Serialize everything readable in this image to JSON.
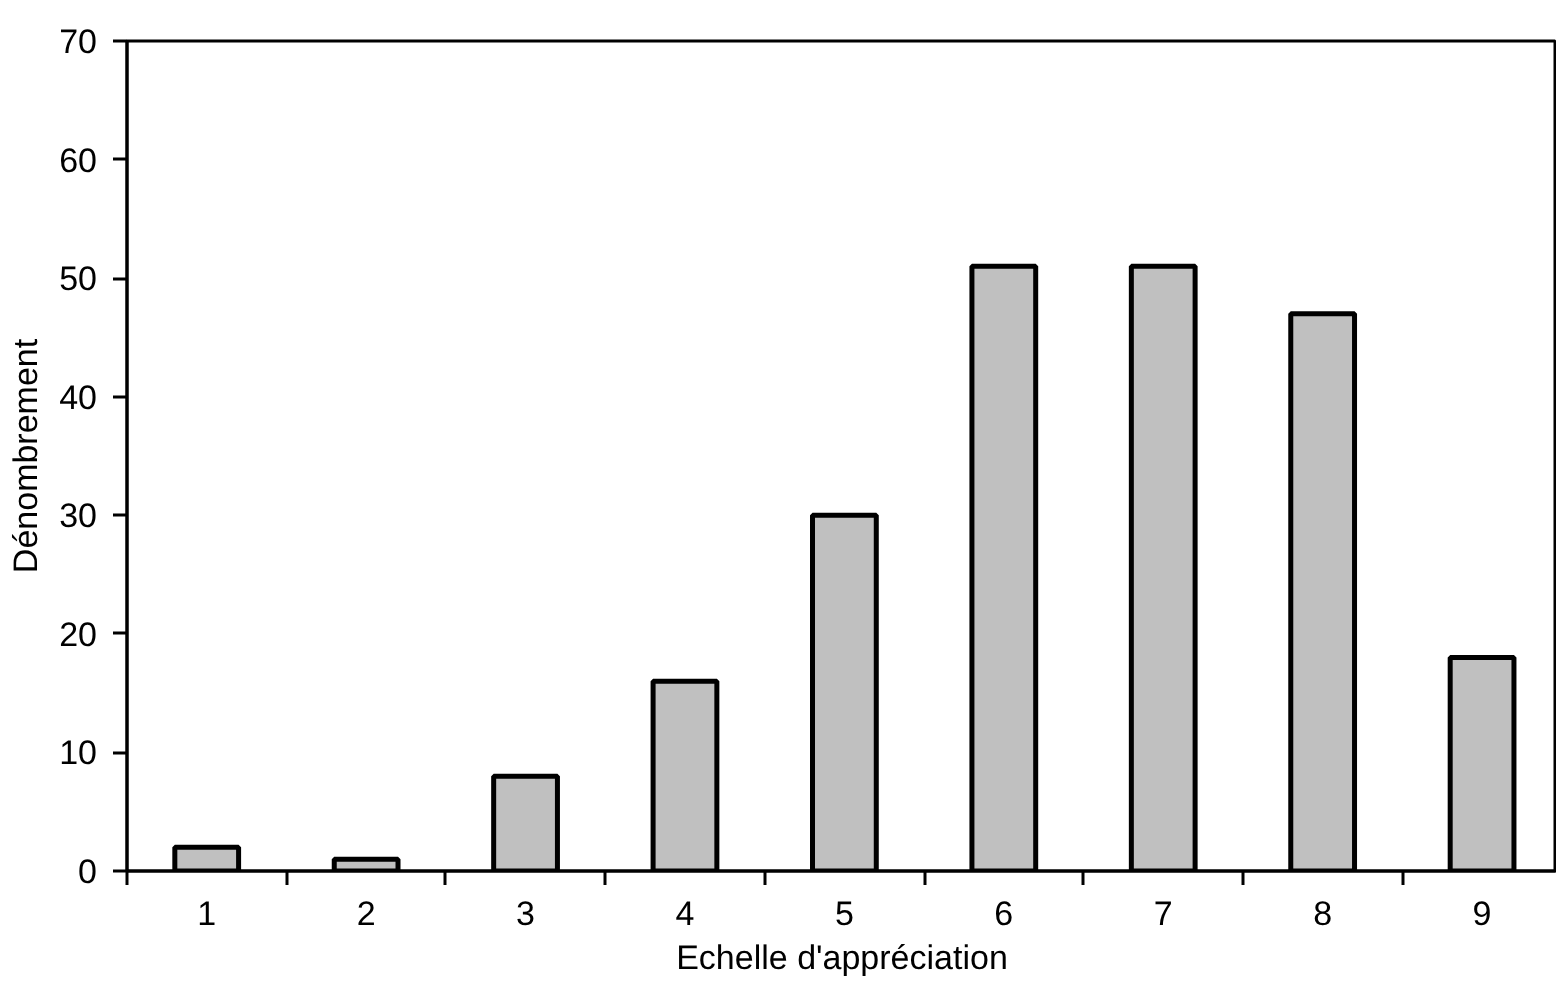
{
  "chart_data": {
    "type": "bar",
    "xlabel": "Echelle d'appréciation",
    "ylabel": "Dénombrement",
    "categories": [
      "1",
      "2",
      "3",
      "4",
      "5",
      "6",
      "7",
      "8",
      "9"
    ],
    "values": [
      2,
      1,
      8,
      16,
      30,
      51,
      51,
      47,
      18
    ],
    "color": "#c0c0c0",
    "ylim": [
      0,
      70
    ],
    "yticks": [
      0,
      10,
      20,
      30,
      40,
      50,
      60,
      70
    ],
    "grid": false
  }
}
